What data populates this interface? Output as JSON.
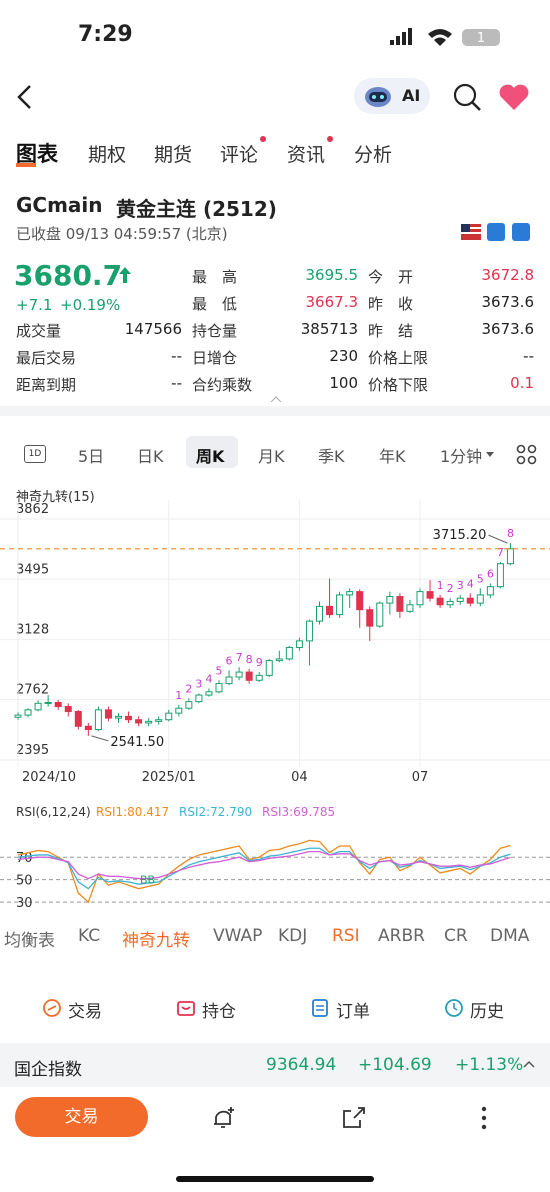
{
  "status_bar": {
    "time": "7:29",
    "battery": "1"
  },
  "header": {
    "ai": "AI"
  },
  "tabs": [
    "图表",
    "期权",
    "期货",
    "评论",
    "资讯",
    "分析"
  ],
  "instrument": {
    "code": "GCmain",
    "name": "黄金主连 (2512)",
    "status": "已收盘 09/13 04:59:57 (北京)"
  },
  "quote": {
    "price": 3680.7,
    "change": "+7.1",
    "change_pct": "+0.19%",
    "stats": [
      {
        "label": "最　高",
        "value": 3695.5
      },
      {
        "label": "今　开",
        "value": 3672.8
      },
      {
        "label": "最　低",
        "value": 3667.3
      },
      {
        "label": "昨　收",
        "value": 3673.6
      },
      {
        "label": "成交量",
        "value": 147566
      },
      {
        "label": "持仓量",
        "value": 385713
      },
      {
        "label": "昨　结",
        "value": 3673.6
      },
      {
        "label": "最后交易",
        "value": "--"
      },
      {
        "label": "日增仓",
        "value": 230
      },
      {
        "label": "价格上限",
        "value": "--"
      },
      {
        "label": "距离到期",
        "value": "--"
      },
      {
        "label": "合约乘数",
        "value": 100
      },
      {
        "label": "价格下限",
        "value": 0.1
      }
    ]
  },
  "periods": [
    "1D",
    "5日",
    "日K",
    "周K",
    "月K",
    "季K",
    "年K",
    "1分钟"
  ],
  "chart_data": [
    {
      "type": "candlestick",
      "title": "神奇九转(15)",
      "categories": [
        "2024/10",
        null,
        null,
        null,
        null,
        null,
        null,
        null,
        null,
        null,
        null,
        null,
        null,
        null,
        null,
        "2025/01",
        null,
        null,
        null,
        null,
        null,
        null,
        null,
        null,
        null,
        null,
        null,
        null,
        "04",
        null,
        null,
        null,
        null,
        null,
        null,
        null,
        null,
        null,
        null,
        null,
        "07",
        null,
        null,
        null,
        null,
        null,
        null,
        null,
        null,
        null
      ],
      "open": [
        2655,
        2668,
        2700,
        2740,
        2745,
        2720,
        2690,
        2600,
        2580,
        2700,
        2650,
        2660,
        2640,
        2620,
        2630,
        2640,
        2680,
        2710,
        2750,
        2790,
        2810,
        2860,
        2900,
        2930,
        2880,
        2910,
        3000,
        3010,
        3080,
        3120,
        3240,
        3330,
        3280,
        3400,
        3420,
        3310,
        3210,
        3350,
        3390,
        3300,
        3340,
        3420,
        3380,
        3340,
        3360,
        3380,
        3350,
        3400,
        3450,
        3590
      ],
      "high": [
        2685,
        2710,
        2758,
        2790,
        2760,
        2740,
        2700,
        2620,
        2720,
        2720,
        2680,
        2690,
        2660,
        2650,
        2660,
        2700,
        2730,
        2770,
        2800,
        2830,
        2880,
        2940,
        2960,
        2950,
        2930,
        3010,
        3060,
        3090,
        3140,
        3250,
        3360,
        3500,
        3420,
        3440,
        3435,
        3330,
        3360,
        3420,
        3410,
        3370,
        3440,
        3490,
        3400,
        3380,
        3400,
        3410,
        3440,
        3470,
        3600,
        3715.2
      ],
      "low": [
        2640,
        2655,
        2690,
        2720,
        2700,
        2660,
        2580,
        2541.5,
        2570,
        2630,
        2620,
        2620,
        2600,
        2600,
        2610,
        2630,
        2660,
        2700,
        2740,
        2780,
        2800,
        2850,
        2880,
        2860,
        2870,
        2900,
        2990,
        3000,
        3060,
        2970,
        3220,
        3260,
        3260,
        3320,
        3200,
        3120,
        3200,
        3280,
        3260,
        3290,
        3320,
        3360,
        3320,
        3320,
        3340,
        3330,
        3330,
        3380,
        3440,
        3580
      ],
      "close": [
        2668,
        2700,
        2740,
        2745,
        2720,
        2690,
        2600,
        2580,
        2700,
        2650,
        2660,
        2640,
        2620,
        2630,
        2640,
        2680,
        2710,
        2750,
        2790,
        2810,
        2860,
        2900,
        2930,
        2880,
        2910,
        3000,
        3010,
        3080,
        3120,
        3240,
        3330,
        3280,
        3400,
        3420,
        3310,
        3210,
        3350,
        3390,
        3300,
        3340,
        3420,
        3380,
        3340,
        3360,
        3380,
        3350,
        3400,
        3450,
        3590,
        3680.7
      ],
      "td_counts": [
        null,
        null,
        null,
        null,
        null,
        null,
        null,
        null,
        null,
        null,
        null,
        null,
        null,
        null,
        null,
        null,
        "1",
        "2",
        "3",
        "4",
        "5",
        "6",
        "7",
        "8",
        "9",
        null,
        null,
        null,
        null,
        null,
        null,
        null,
        null,
        null,
        null,
        null,
        null,
        null,
        null,
        null,
        null,
        null,
        "1",
        "2",
        "3",
        "4",
        "5",
        "6",
        "7",
        "8"
      ],
      "high_label": "3715.20",
      "low_label": "2541.50",
      "up_color": "#1aa06d",
      "down_color": "#e0334f",
      "count_color": "#c73ad2",
      "last_line_color": "#f08a1c",
      "ylim": [
        2352,
        3917
      ],
      "yticks": [
        2395,
        2762,
        3128,
        3495,
        3862
      ],
      "grid": true
    },
    {
      "type": "line",
      "title": "RSI(6,12,24)",
      "annotation": "BB",
      "series": [
        {
          "name": "RSI1:80.417",
          "color": "#f08a1c",
          "values": [
            72,
            74,
            76,
            75,
            70,
            65,
            38,
            30,
            55,
            45,
            48,
            45,
            42,
            44,
            46,
            55,
            62,
            68,
            72,
            74,
            76,
            78,
            80,
            68,
            70,
            76,
            77,
            80,
            82,
            85,
            84,
            74,
            80,
            80,
            65,
            55,
            68,
            70,
            58,
            62,
            70,
            63,
            56,
            58,
            60,
            55,
            62,
            68,
            78,
            80.417
          ]
        },
        {
          "name": "RSI2:72.790",
          "color": "#3bb3d4",
          "values": [
            70,
            71,
            72,
            72,
            69,
            65,
            48,
            42,
            52,
            48,
            49,
            48,
            46,
            47,
            48,
            53,
            58,
            63,
            66,
            68,
            70,
            72,
            74,
            67,
            68,
            71,
            72,
            74,
            76,
            78,
            78,
            72,
            75,
            75,
            66,
            60,
            66,
            67,
            61,
            63,
            67,
            64,
            60,
            61,
            62,
            59,
            62,
            65,
            70,
            72.79
          ]
        },
        {
          "name": "RSI3:69.785",
          "color": "#d35ed8",
          "values": [
            68,
            69,
            70,
            70,
            68,
            66,
            55,
            51,
            55,
            53,
            53,
            52,
            51,
            51,
            52,
            55,
            58,
            61,
            63,
            65,
            66,
            68,
            70,
            66,
            67,
            69,
            70,
            71,
            73,
            75,
            75,
            72,
            73,
            73,
            67,
            63,
            66,
            67,
            63,
            64,
            66,
            64,
            62,
            62,
            63,
            61,
            63,
            64,
            67,
            69.785
          ]
        }
      ],
      "ylim": [
        23,
        96
      ],
      "yticks": [
        30,
        50,
        70
      ],
      "grid": true
    }
  ],
  "indicators": [
    "均衡表",
    "KC",
    "神奇九转",
    "VWAP",
    "KDJ",
    "RSI",
    "ARBR",
    "CR",
    "DMA"
  ],
  "actions": [
    "交易",
    "持仓",
    "订单",
    "历史"
  ],
  "ticker": {
    "name": "国企指数",
    "value": 9364.94,
    "change": "+104.69",
    "change_pct": "+1.13%"
  },
  "bottom_bar": {
    "button": "交易"
  }
}
